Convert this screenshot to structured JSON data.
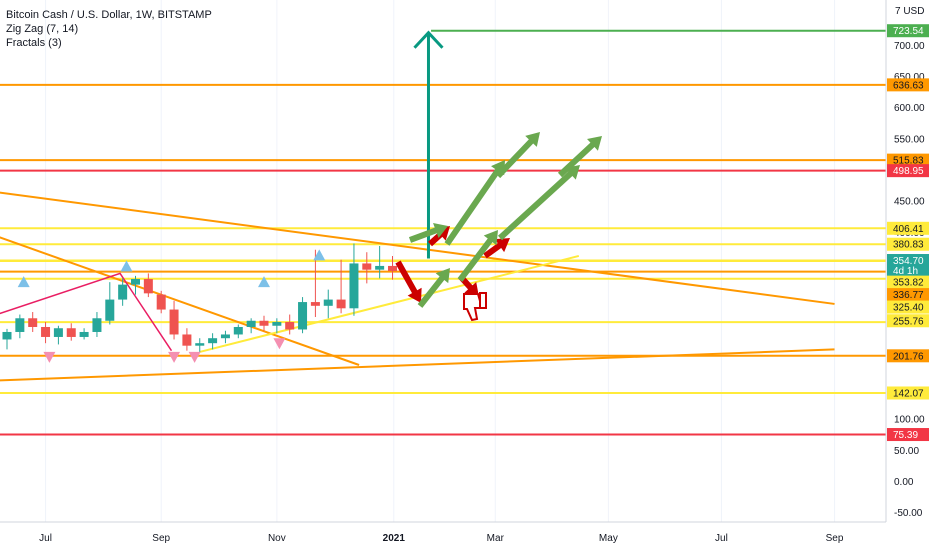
{
  "header": {
    "title": "Bitcoin Cash / U.S. Dollar, 1W, BITSTAMP",
    "indicators": [
      "Zig Zag (7, 14)",
      "Fractals (3)"
    ],
    "unit": "7 USD"
  },
  "chart_data": {
    "type": "candlestick",
    "ylim": [
      -65,
      760
    ],
    "y_ticks": [
      -50,
      0,
      50,
      100,
      400,
      450,
      550,
      600,
      650,
      700
    ],
    "x_ticks": [
      {
        "label": "Jul",
        "t": 3
      },
      {
        "label": "Sep",
        "t": 12
      },
      {
        "label": "Nov",
        "t": 21
      },
      {
        "label": "2021",
        "t": 30.1
      },
      {
        "label": "Mar",
        "t": 38
      },
      {
        "label": "May",
        "t": 46.8
      },
      {
        "label": "Jul",
        "t": 55.6
      },
      {
        "label": "Sep",
        "t": 64.4
      }
    ],
    "candles": [
      {
        "t": 0,
        "o": 228,
        "h": 245,
        "l": 212,
        "c": 240
      },
      {
        "t": 1,
        "o": 240,
        "h": 268,
        "l": 230,
        "c": 262
      },
      {
        "t": 2,
        "o": 262,
        "h": 272,
        "l": 240,
        "c": 248
      },
      {
        "t": 3,
        "o": 248,
        "h": 256,
        "l": 222,
        "c": 232
      },
      {
        "t": 4,
        "o": 232,
        "h": 250,
        "l": 220,
        "c": 246
      },
      {
        "t": 5,
        "o": 246,
        "h": 254,
        "l": 226,
        "c": 232
      },
      {
        "t": 6,
        "o": 232,
        "h": 246,
        "l": 228,
        "c": 240
      },
      {
        "t": 7,
        "o": 240,
        "h": 272,
        "l": 232,
        "c": 262
      },
      {
        "t": 8,
        "o": 258,
        "h": 320,
        "l": 252,
        "c": 292
      },
      {
        "t": 9,
        "o": 292,
        "h": 326,
        "l": 282,
        "c": 316
      },
      {
        "t": 10,
        "o": 316,
        "h": 330,
        "l": 300,
        "c": 325
      },
      {
        "t": 11,
        "o": 325,
        "h": 334,
        "l": 296,
        "c": 302
      },
      {
        "t": 12,
        "o": 300,
        "h": 306,
        "l": 270,
        "c": 276
      },
      {
        "t": 13,
        "o": 276,
        "h": 290,
        "l": 228,
        "c": 236
      },
      {
        "t": 14,
        "o": 236,
        "h": 246,
        "l": 210,
        "c": 218
      },
      {
        "t": 15,
        "o": 218,
        "h": 230,
        "l": 208,
        "c": 222
      },
      {
        "t": 16,
        "o": 222,
        "h": 238,
        "l": 212,
        "c": 230
      },
      {
        "t": 17,
        "o": 230,
        "h": 242,
        "l": 222,
        "c": 236
      },
      {
        "t": 18,
        "o": 236,
        "h": 252,
        "l": 230,
        "c": 248
      },
      {
        "t": 19,
        "o": 248,
        "h": 262,
        "l": 238,
        "c": 258
      },
      {
        "t": 20,
        "o": 258,
        "h": 266,
        "l": 242,
        "c": 250
      },
      {
        "t": 21,
        "o": 250,
        "h": 262,
        "l": 238,
        "c": 256
      },
      {
        "t": 22,
        "o": 256,
        "h": 268,
        "l": 236,
        "c": 244
      },
      {
        "t": 23,
        "o": 244,
        "h": 296,
        "l": 238,
        "c": 288
      },
      {
        "t": 24,
        "o": 288,
        "h": 372,
        "l": 264,
        "c": 282
      },
      {
        "t": 25,
        "o": 282,
        "h": 308,
        "l": 262,
        "c": 292
      },
      {
        "t": 26,
        "o": 292,
        "h": 356,
        "l": 270,
        "c": 278
      },
      {
        "t": 27,
        "o": 278,
        "h": 382,
        "l": 266,
        "c": 350
      },
      {
        "t": 28,
        "o": 350,
        "h": 368,
        "l": 318,
        "c": 340
      },
      {
        "t": 29,
        "o": 340,
        "h": 378,
        "l": 326,
        "c": 346
      },
      {
        "t": 30,
        "o": 346,
        "h": 362,
        "l": 324,
        "c": 338
      }
    ],
    "fractals_up": [
      {
        "t": 1.3,
        "p": 320
      },
      {
        "t": 9.3,
        "p": 345
      },
      {
        "t": 20,
        "p": 320
      },
      {
        "t": 24.3,
        "p": 363
      }
    ],
    "fractals_down": [
      {
        "t": 3.3,
        "p": 200
      },
      {
        "t": 13,
        "p": 200
      },
      {
        "t": 14.6,
        "p": 200
      },
      {
        "t": 21.2,
        "p": 222
      }
    ],
    "zigzag": [
      {
        "t": -4,
        "p": 246
      },
      {
        "t": 8.8,
        "p": 334
      },
      {
        "t": 12.8,
        "p": 210
      }
    ],
    "horizontal_levels": [
      {
        "price": 723.54,
        "label": "723.54",
        "color": "#4caf50",
        "t_start": 33
      },
      {
        "price": 636.63,
        "label": "636.63",
        "color": "#ff9800"
      },
      {
        "price": 515.83,
        "label": "515.83",
        "color": "#ff9800"
      },
      {
        "price": 498.95,
        "label": "498.95",
        "color": "#f23645"
      },
      {
        "price": 406.41,
        "label": "406.41",
        "color": "#ffeb3b"
      },
      {
        "price": 380.83,
        "label": "380.83",
        "color": "#ffeb3b"
      },
      {
        "price": 354.7,
        "label": "354.70",
        "color": "#ffeb3b"
      },
      {
        "price": 353.82,
        "label": "353.82",
        "color": "#ffeb3b"
      },
      {
        "price": 336.77,
        "label": "336.77",
        "color": "#ff9800"
      },
      {
        "price": 325.4,
        "label": "325.40",
        "color": "#ffeb3b"
      },
      {
        "price": 255.76,
        "label": "255.76",
        "color": "#ffeb3b"
      },
      {
        "price": 201.76,
        "label": "201.76",
        "color": "#ff9800"
      },
      {
        "price": 142.07,
        "label": "142.07",
        "color": "#ffeb3b"
      },
      {
        "price": 75.39,
        "label": "75.39",
        "color": "#f23645"
      }
    ],
    "trendlines": [
      {
        "t1": -1,
        "p1": 465,
        "t2": 64.4,
        "p2": 285,
        "color": "#ff9800",
        "width": 2
      },
      {
        "t1": -1,
        "p1": 395,
        "t2": 27.4,
        "p2": 187,
        "color": "#ff9800",
        "width": 2
      },
      {
        "t1": -1,
        "p1": 162,
        "t2": 64.4,
        "p2": 212,
        "color": "#ff9800",
        "width": 2
      },
      {
        "t1": 15,
        "p1": 208,
        "t2": 44.5,
        "p2": 362,
        "color": "#ffeb3b",
        "width": 2
      }
    ],
    "target_arrow": {
      "t": 32.8,
      "from": 358,
      "to": 723.54,
      "color": "#089981"
    },
    "price_badges": [
      {
        "price": 723.54,
        "label": "723.54",
        "bg": "#4caf50",
        "fg": "#ffffff"
      },
      {
        "price": 636.63,
        "label": "636.63",
        "bg": "#ff9800",
        "fg": "#131722"
      },
      {
        "price": 515.83,
        "label": "515.83",
        "bg": "#ff9800",
        "fg": "#131722"
      },
      {
        "price": 498.95,
        "label": "498.95",
        "bg": "#f23645",
        "fg": "#ffffff"
      },
      {
        "price": 406.41,
        "label": "406.41",
        "bg": "#ffeb3b",
        "fg": "#131722"
      },
      {
        "price": 380.83,
        "label": "380.83",
        "bg": "#ffeb3b",
        "fg": "#131722"
      },
      {
        "price": 354.7,
        "label": "354.70",
        "bg": "#26a69a",
        "fg": "#ffffff"
      },
      {
        "price": 338.5,
        "label": "4d 1h",
        "bg": "#26a69a",
        "fg": "#ffffff"
      },
      {
        "price": 320,
        "label": "353.82",
        "bg": "#ffeb3b",
        "fg": "#131722"
      },
      {
        "price": 300,
        "label": "336.77",
        "bg": "#ff9800",
        "fg": "#131722"
      },
      {
        "price": 280,
        "label": "325.40",
        "bg": "#ffeb3b",
        "fg": "#131722"
      },
      {
        "price": 258,
        "label": "255.76",
        "bg": "#ffeb3b",
        "fg": "#131722"
      },
      {
        "price": 201.76,
        "label": "201.76",
        "bg": "#ff9800",
        "fg": "#131722"
      },
      {
        "price": 142.07,
        "label": "142.07",
        "bg": "#ffeb3b",
        "fg": "#131722"
      },
      {
        "price": 75.39,
        "label": "75.39",
        "bg": "#f23645",
        "fg": "#ffffff"
      }
    ],
    "drawing_colors": {
      "up_candle": "#26a69a",
      "down_candle": "#ef5350",
      "green_arrow": "#6aa84f",
      "red_arrow": "#cc0000",
      "zigzag": "#e91e63",
      "fractal_up": "#7cc0e8",
      "fractal_down": "#f48fb1"
    }
  }
}
